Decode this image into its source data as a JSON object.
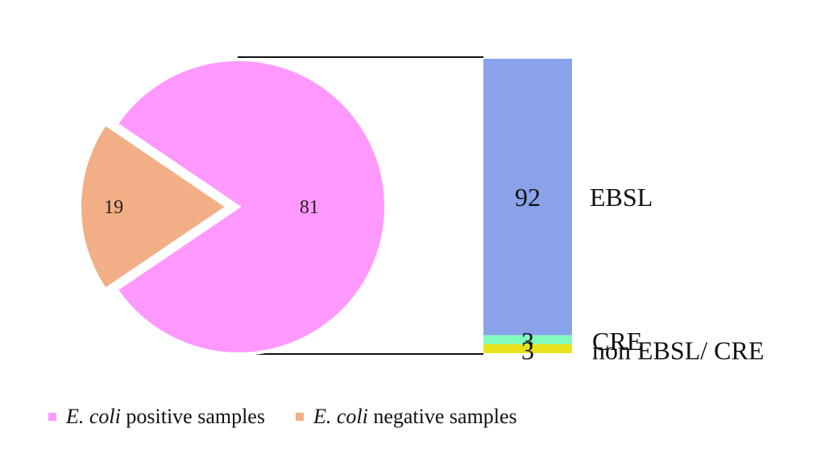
{
  "chart_data": {
    "type": "pie",
    "pie": {
      "slices": [
        {
          "label": "81",
          "value": 81,
          "color": "#ff99ff",
          "exploded": false
        },
        {
          "label": "19",
          "value": 19,
          "color": "#f2ae85",
          "exploded": true
        }
      ]
    },
    "bar": {
      "type": "bar",
      "stacked": true,
      "segments": [
        {
          "name": "EBSL",
          "value": 92,
          "label": "92",
          "color": "#8aa2ea"
        },
        {
          "name": "CRE",
          "value": 3,
          "label": "3",
          "color": "#82fcbc"
        },
        {
          "name": "non EBSL/ CRE",
          "value": 3,
          "label": "3",
          "color": "#e8e31c"
        }
      ]
    },
    "legend": {
      "placement": "bottom-left",
      "entries": [
        {
          "italic": "E. coli",
          "text": " positive samples",
          "color": "#ff99ff"
        },
        {
          "italic": "E. coli",
          "text": " negative samples",
          "color": "#f2ae85"
        }
      ]
    }
  }
}
